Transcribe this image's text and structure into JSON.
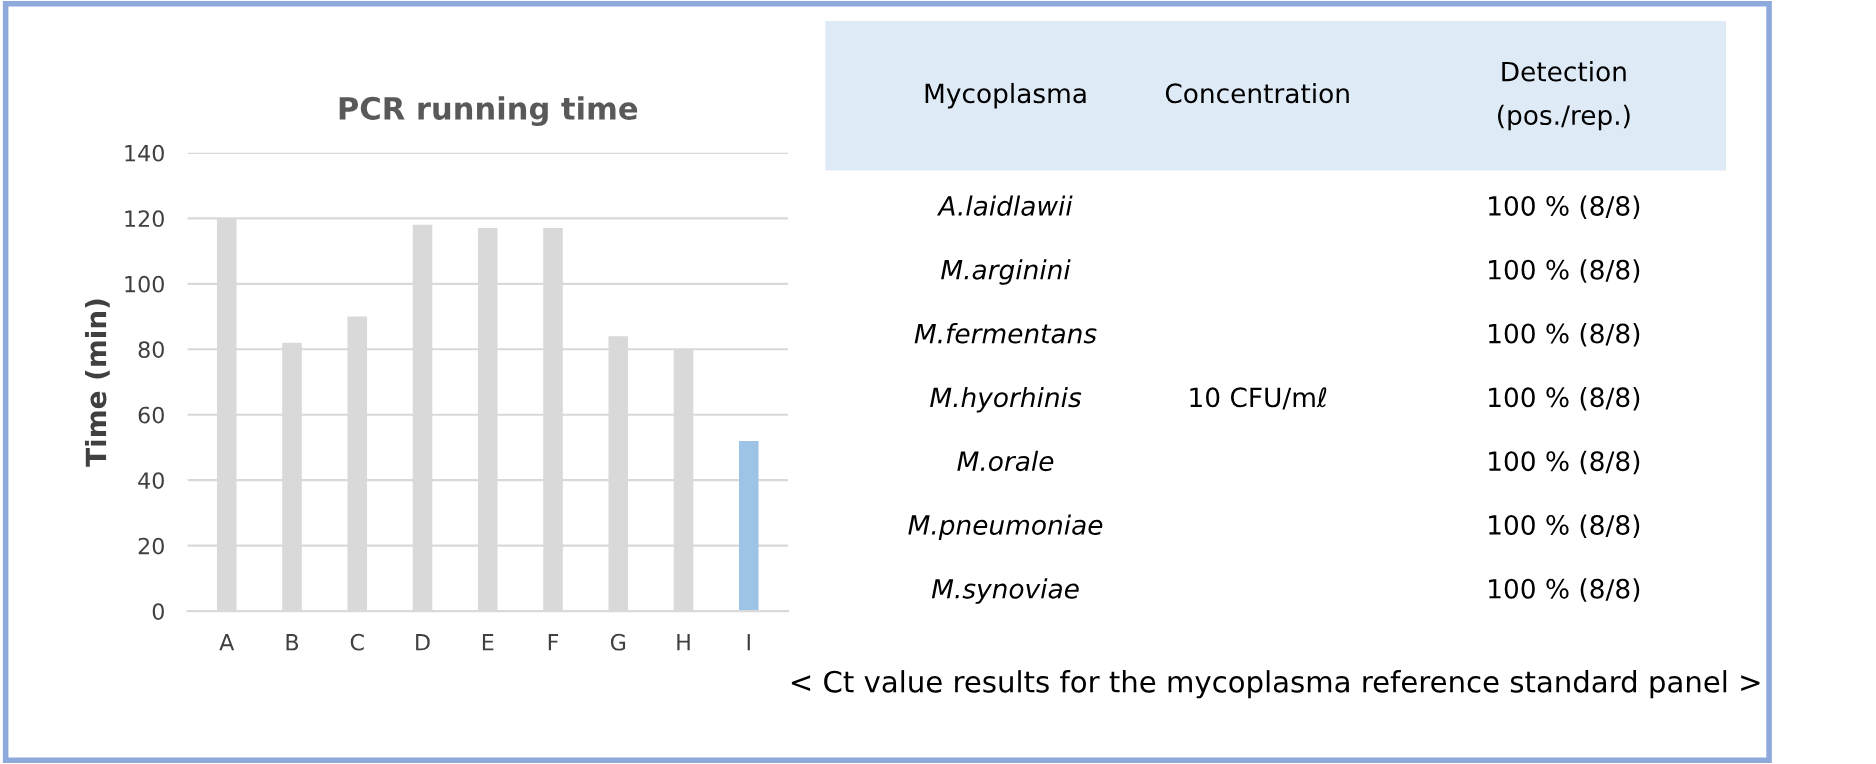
{
  "chart_data": [
    {
      "type": "bar",
      "title": "PCR running time",
      "ylabel": "Time (min)",
      "categories": [
        "A",
        "B",
        "C",
        "D",
        "E",
        "F",
        "G",
        "H",
        "I"
      ],
      "values": [
        120,
        82,
        90,
        118,
        117,
        117,
        84,
        80,
        52
      ],
      "colors": [
        "#d9d9d9",
        "#d9d9d9",
        "#d9d9d9",
        "#d9d9d9",
        "#d9d9d9",
        "#d9d9d9",
        "#d9d9d9",
        "#d9d9d9",
        "#9dc3e6"
      ],
      "ylim": [
        0,
        140
      ],
      "yticks": [
        0,
        20,
        40,
        60,
        80,
        100,
        120,
        140
      ],
      "grid": "y"
    },
    {
      "type": "other",
      "annotations": [
        "Mycoplasma",
        "Concentration",
        "Detection\n(pos./rep.)",
        "A.laidlawii",
        "M.arginini",
        "M.fermentans",
        "M.hyorhinis",
        "M.orale",
        "M.pneumoniae",
        "M.synoviae",
        "10 CFU/mℓ",
        "100 % (8/8)",
        "100 % (8/8)",
        "100 % (8/8)",
        "100 % (8/8)",
        "100 % (8/8)",
        "100 % (8/8)",
        "100 % (8/8)",
        "< Ct value results for the mycoplasma reference standard panel >"
      ]
    }
  ]
}
